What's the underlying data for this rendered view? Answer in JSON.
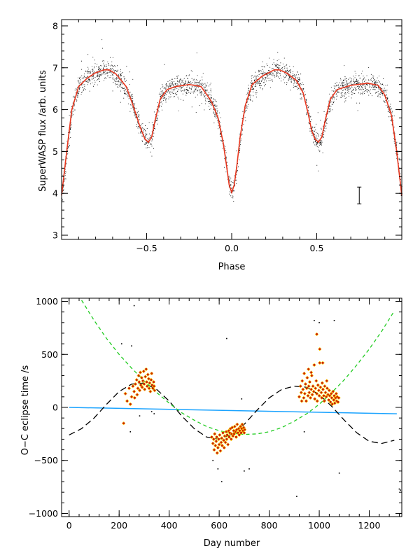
{
  "colors": {
    "axis": "#000000",
    "scatter_points": "#000000",
    "binned_curve": "#e8371f",
    "oc_points_fill": "#cc2200",
    "oc_points_edge": "#ffd400",
    "outlier_points": "#000000",
    "linear_fit": "#1aa3ff",
    "sinusoid_fit": "#000000",
    "quadratic_fit": "#22cc22"
  },
  "chart_data": [
    {
      "type": "scatter",
      "xlabel": "Phase",
      "ylabel": "SuperWASP flux /arb. units",
      "xlim": [
        -1.0,
        1.0
      ],
      "ylim": [
        2.9,
        8.15
      ],
      "xticks": [
        -0.5,
        0.0,
        0.5
      ],
      "xtick_labels": [
        "−0.5",
        "0.0",
        "0.5"
      ],
      "yticks": [
        3,
        4,
        5,
        6,
        7,
        8
      ],
      "ytick_labels": [
        "3",
        "4",
        "5",
        "6",
        "7",
        "8"
      ],
      "grid": false,
      "series": [
        {
          "kind": "line",
          "role": "binned-mean-light-curve",
          "x": [
            -1.0,
            -0.97,
            -0.94,
            -0.9,
            -0.85,
            -0.8,
            -0.75,
            -0.72,
            -0.68,
            -0.62,
            -0.58,
            -0.54,
            -0.51,
            -0.49,
            -0.47,
            -0.45,
            -0.42,
            -0.38,
            -0.33,
            -0.25,
            -0.18,
            -0.12,
            -0.08,
            -0.05,
            -0.03,
            -0.015,
            0.0,
            0.015,
            0.03,
            0.05,
            0.08,
            0.12,
            0.18,
            0.25,
            0.28,
            0.32,
            0.38,
            0.42,
            0.45,
            0.47,
            0.49,
            0.51,
            0.53,
            0.55,
            0.58,
            0.62,
            0.7,
            0.8,
            0.86,
            0.9,
            0.94,
            0.97,
            1.0
          ],
          "y": [
            3.95,
            5.0,
            6.0,
            6.55,
            6.75,
            6.88,
            6.95,
            6.95,
            6.85,
            6.55,
            6.1,
            5.6,
            5.3,
            5.22,
            5.35,
            5.75,
            6.25,
            6.48,
            6.55,
            6.6,
            6.55,
            6.2,
            5.8,
            5.2,
            4.65,
            4.2,
            4.02,
            4.2,
            4.65,
            5.35,
            6.1,
            6.6,
            6.8,
            6.95,
            6.95,
            6.88,
            6.7,
            6.4,
            5.9,
            5.5,
            5.3,
            5.22,
            5.35,
            5.75,
            6.25,
            6.48,
            6.58,
            6.63,
            6.58,
            6.35,
            5.85,
            5.0,
            3.95
          ]
        }
      ],
      "annotations": [
        {
          "kind": "error-bar",
          "x": 0.75,
          "y": 3.95,
          "y_err": 0.2
        }
      ]
    },
    {
      "type": "scatter",
      "xlabel": "Day number",
      "ylabel": "O−C eclipse time /s",
      "xlim": [
        -30,
        1330
      ],
      "ylim": [
        -1030,
        1030
      ],
      "xticks": [
        0,
        200,
        400,
        600,
        800,
        1000,
        1200
      ],
      "xtick_labels": [
        "0",
        "200",
        "400",
        "600",
        "800",
        "1000",
        "1200"
      ],
      "yticks": [
        -1000,
        -500,
        0,
        500,
        1000
      ],
      "ytick_labels": [
        "−1000",
        "−500",
        "0",
        "500",
        "1000"
      ],
      "grid": false,
      "series": [
        {
          "kind": "points",
          "role": "eclipse-timings",
          "points": [
            [
              218,
              -150
            ],
            [
              225,
              130
            ],
            [
              232,
              60
            ],
            [
              240,
              180
            ],
            [
              245,
              30
            ],
            [
              250,
              100
            ],
            [
              255,
              200
            ],
            [
              260,
              150
            ],
            [
              262,
              90
            ],
            [
              265,
              220
            ],
            [
              270,
              260
            ],
            [
              272,
              120
            ],
            [
              275,
              180
            ],
            [
              278,
              300
            ],
            [
              280,
              240
            ],
            [
              282,
              160
            ],
            [
              285,
              330
            ],
            [
              287,
              210
            ],
            [
              290,
              280
            ],
            [
              292,
              190
            ],
            [
              295,
              250
            ],
            [
              298,
              340
            ],
            [
              300,
              220
            ],
            [
              302,
              170
            ],
            [
              305,
              290
            ],
            [
              308,
              360
            ],
            [
              310,
              240
            ],
            [
              312,
              200
            ],
            [
              315,
              310
            ],
            [
              318,
              270
            ],
            [
              320,
              180
            ],
            [
              322,
              230
            ],
            [
              325,
              150
            ],
            [
              328,
              260
            ],
            [
              330,
              320
            ],
            [
              332,
              210
            ],
            [
              335,
              180
            ],
            [
              338,
              240
            ],
            [
              340,
              200
            ],
            [
              342,
              160
            ],
            [
              570,
              -280
            ],
            [
              575,
              -340
            ],
            [
              578,
              -300
            ],
            [
              580,
              -400
            ],
            [
              582,
              -250
            ],
            [
              585,
              -360
            ],
            [
              588,
              -320
            ],
            [
              590,
              -280
            ],
            [
              592,
              -430
            ],
            [
              595,
              -380
            ],
            [
              598,
              -300
            ],
            [
              600,
              -350
            ],
            [
              602,
              -260
            ],
            [
              605,
              -410
            ],
            [
              608,
              -330
            ],
            [
              610,
              -290
            ],
            [
              612,
              -360
            ],
            [
              615,
              -240
            ],
            [
              618,
              -310
            ],
            [
              620,
              -380
            ],
            [
              622,
              -270
            ],
            [
              625,
              -330
            ],
            [
              628,
              -230
            ],
            [
              630,
              -300
            ],
            [
              632,
              -260
            ],
            [
              635,
              -350
            ],
            [
              638,
              -220
            ],
            [
              640,
              -280
            ],
            [
              642,
              -240
            ],
            [
              645,
              -200
            ],
            [
              648,
              -300
            ],
            [
              650,
              -250
            ],
            [
              652,
              -190
            ],
            [
              655,
              -270
            ],
            [
              658,
              -220
            ],
            [
              660,
              -250
            ],
            [
              662,
              -180
            ],
            [
              665,
              -230
            ],
            [
              668,
              -280
            ],
            [
              670,
              -210
            ],
            [
              672,
              -160
            ],
            [
              675,
              -240
            ],
            [
              678,
              -200
            ],
            [
              680,
              -260
            ],
            [
              682,
              -220
            ],
            [
              685,
              -180
            ],
            [
              688,
              -240
            ],
            [
              690,
              -200
            ],
            [
              692,
              -160
            ],
            [
              695,
              -220
            ],
            [
              698,
              -190
            ],
            [
              700,
              -240
            ],
            [
              702,
              -210
            ],
            [
              920,
              100
            ],
            [
              925,
              200
            ],
            [
              928,
              140
            ],
            [
              930,
              60
            ],
            [
              932,
              250
            ],
            [
              935,
              170
            ],
            [
              938,
              90
            ],
            [
              940,
              320
            ],
            [
              942,
              130
            ],
            [
              945,
              220
            ],
            [
              948,
              60
            ],
            [
              950,
              180
            ],
            [
              952,
              280
            ],
            [
              955,
              110
            ],
            [
              958,
              200
            ],
            [
              960,
              140
            ],
            [
              962,
              240
            ],
            [
              965,
              90
            ],
            [
              968,
              170
            ],
            [
              970,
              300
            ],
            [
              972,
              120
            ],
            [
              975,
              200
            ],
            [
              978,
              150
            ],
            [
              980,
              400
            ],
            [
              982,
              80
            ],
            [
              985,
              180
            ],
            [
              988,
              250
            ],
            [
              990,
              130
            ],
            [
              992,
              60
            ],
            [
              995,
              210
            ],
            [
              998,
              160
            ],
            [
              1000,
              110
            ],
            [
              1002,
              420
            ],
            [
              1005,
              190
            ],
            [
              1008,
              140
            ],
            [
              1010,
              90
            ],
            [
              1012,
              230
            ],
            [
              1015,
              170
            ],
            [
              1018,
              110
            ],
            [
              1020,
              60
            ],
            [
              1022,
              200
            ],
            [
              1025,
              140
            ],
            [
              1028,
              100
            ],
            [
              1030,
              250
            ],
            [
              1032,
              180
            ],
            [
              1035,
              120
            ],
            [
              1038,
              70
            ],
            [
              1040,
              160
            ],
            [
              1042,
              110
            ],
            [
              1045,
              50
            ],
            [
              1048,
              130
            ],
            [
              1050,
              90
            ],
            [
              1052,
              30
            ],
            [
              1055,
              150
            ],
            [
              1058,
              70
            ],
            [
              1060,
              110
            ],
            [
              1062,
              40
            ],
            [
              1065,
              90
            ],
            [
              1068,
              130
            ],
            [
              1070,
              60
            ],
            [
              1072,
              100
            ],
            [
              1075,
              50
            ],
            [
              1078,
              90
            ],
            [
              990,
              690
            ],
            [
              1002,
              550
            ],
            [
              1014,
              420
            ],
            [
              957,
              360
            ],
            [
              968,
              330
            ]
          ]
        },
        {
          "kind": "points",
          "role": "outliers",
          "points": [
            [
              210,
              600
            ],
            [
              250,
              580
            ],
            [
              260,
              960
            ],
            [
              330,
              -40
            ],
            [
              340,
              -60
            ],
            [
              282,
              -80
            ],
            [
              245,
              -230
            ],
            [
              575,
              -500
            ],
            [
              595,
              -580
            ],
            [
              610,
              -700
            ],
            [
              630,
              650
            ],
            [
              700,
              -600
            ],
            [
              720,
              -580
            ],
            [
              690,
              80
            ],
            [
              910,
              -840
            ],
            [
              940,
              -230
            ],
            [
              980,
              820
            ],
            [
              1000,
              800
            ],
            [
              1060,
              820
            ],
            [
              1080,
              -620
            ],
            [
              1320,
              -770
            ],
            [
              1325,
              -780
            ]
          ]
        },
        {
          "kind": "line",
          "role": "linear-fit",
          "x": [
            0,
            1310
          ],
          "y": [
            0,
            -60
          ]
        },
        {
          "kind": "line",
          "role": "sinusoid-fit",
          "style": "dashed",
          "x": [
            0,
            50,
            100,
            150,
            200,
            250,
            300,
            350,
            400,
            450,
            500,
            550,
            600,
            650,
            700,
            750,
            800,
            850,
            900,
            950,
            1000,
            1050,
            1100,
            1150,
            1200,
            1250,
            1300
          ],
          "y": [
            -260,
            -200,
            -100,
            30,
            150,
            220,
            230,
            170,
            60,
            -80,
            -200,
            -280,
            -300,
            -255,
            -160,
            -30,
            90,
            170,
            200,
            190,
            120,
            10,
            -120,
            -240,
            -320,
            -340,
            -310
          ]
        },
        {
          "kind": "line",
          "role": "quadratic-fit",
          "style": "dashed",
          "x": [
            50,
            100,
            150,
            200,
            250,
            300,
            350,
            400,
            450,
            500,
            550,
            600,
            650,
            700,
            750,
            800,
            850,
            900,
            950,
            1000,
            1050,
            1100,
            1150,
            1200,
            1250,
            1300
          ],
          "y": [
            1010,
            820,
            650,
            500,
            370,
            250,
            140,
            40,
            -50,
            -120,
            -180,
            -220,
            -245,
            -255,
            -250,
            -230,
            -190,
            -130,
            -60,
            30,
            140,
            260,
            400,
            550,
            720,
            910
          ]
        }
      ]
    }
  ]
}
